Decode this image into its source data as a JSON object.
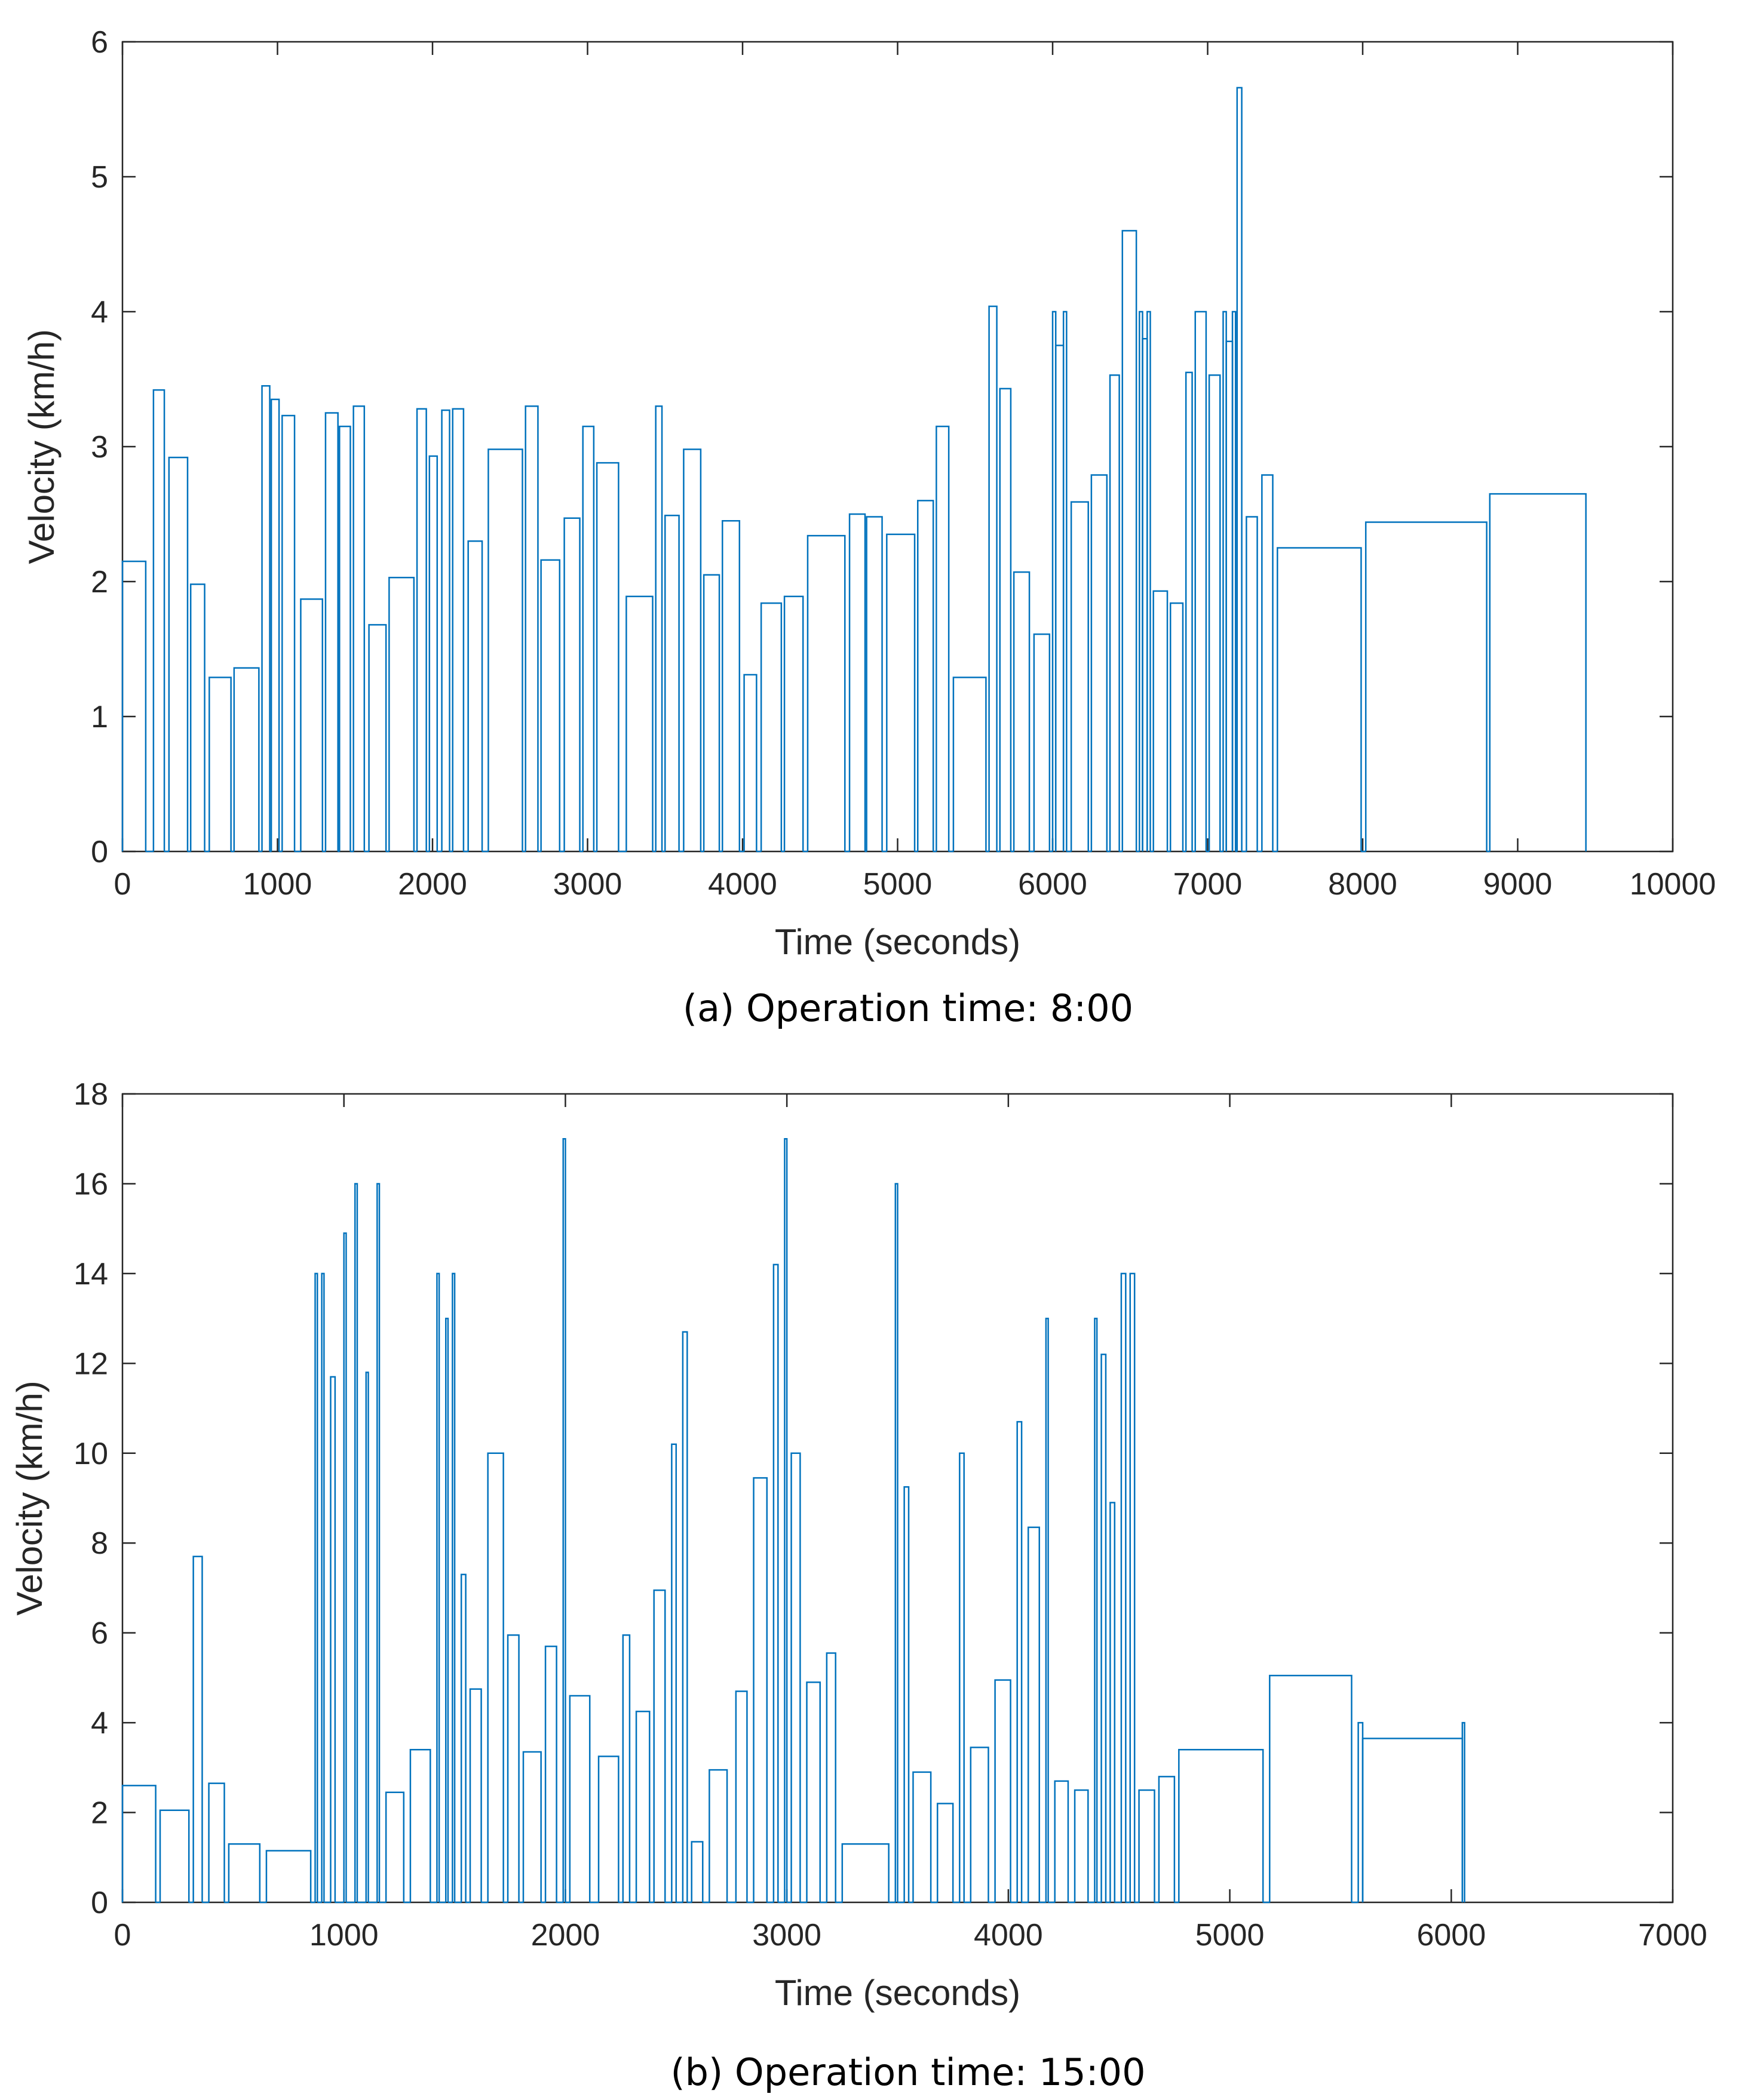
{
  "colors": {
    "series": "#0072BD",
    "axis": "#262626",
    "background": "#ffffff"
  },
  "chart_data": [
    {
      "type": "line",
      "title": "",
      "caption": "(a) Operation time: 8:00",
      "xlabel": "Time (seconds)",
      "ylabel": "Velocity (km/h)",
      "xlim": [
        0,
        10000
      ],
      "ylim": [
        0,
        6
      ],
      "xticks": [
        0,
        1000,
        2000,
        3000,
        4000,
        5000,
        6000,
        7000,
        8000,
        9000,
        10000
      ],
      "yticks": [
        0,
        1,
        2,
        3,
        4,
        5,
        6
      ],
      "grid": false,
      "segments": [
        [
          0,
          150,
          2.15
        ],
        [
          200,
          270,
          3.42
        ],
        [
          300,
          420,
          2.92
        ],
        [
          440,
          530,
          1.98
        ],
        [
          560,
          700,
          1.29
        ],
        [
          720,
          880,
          1.36
        ],
        [
          900,
          950,
          3.45
        ],
        [
          960,
          1010,
          3.35
        ],
        [
          1030,
          1110,
          3.23
        ],
        [
          1150,
          1290,
          1.87
        ],
        [
          1310,
          1390,
          3.25
        ],
        [
          1400,
          1470,
          3.15
        ],
        [
          1490,
          1560,
          3.3
        ],
        [
          1590,
          1700,
          1.68
        ],
        [
          1720,
          1880,
          2.03
        ],
        [
          1900,
          1960,
          3.28
        ],
        [
          1980,
          2030,
          2.93
        ],
        [
          2060,
          2110,
          3.27
        ],
        [
          2130,
          2200,
          3.28
        ],
        [
          2230,
          2320,
          2.3
        ],
        [
          2360,
          2580,
          2.98
        ],
        [
          2600,
          2680,
          3.3
        ],
        [
          2700,
          2820,
          2.16
        ],
        [
          2850,
          2950,
          2.47
        ],
        [
          2970,
          3040,
          3.15
        ],
        [
          3060,
          3200,
          2.88
        ],
        [
          3250,
          3420,
          1.89
        ],
        [
          3440,
          3480,
          3.3
        ],
        [
          3500,
          3590,
          2.49
        ],
        [
          3620,
          3730,
          2.98
        ],
        [
          3750,
          3850,
          2.05
        ],
        [
          3870,
          3980,
          2.45
        ],
        [
          4010,
          4090,
          1.31
        ],
        [
          4120,
          4250,
          1.84
        ],
        [
          4270,
          4390,
          1.89
        ],
        [
          4420,
          4660,
          2.34
        ],
        [
          4690,
          4790,
          2.5
        ],
        [
          4800,
          4900,
          2.48
        ],
        [
          4930,
          5110,
          2.35
        ],
        [
          5130,
          5230,
          2.6
        ],
        [
          5250,
          5330,
          3.15
        ],
        [
          5360,
          5570,
          1.29
        ],
        [
          5590,
          5640,
          4.04
        ],
        [
          5660,
          5730,
          3.43
        ],
        [
          5750,
          5850,
          2.07
        ],
        [
          5880,
          5980,
          1.61
        ],
        [
          6000,
          6020,
          4.0
        ],
        [
          6020,
          6070,
          3.75
        ],
        [
          6070,
          6090,
          4.0
        ],
        [
          6120,
          6230,
          2.59
        ],
        [
          6250,
          6350,
          2.79
        ],
        [
          6370,
          6430,
          3.53
        ],
        [
          6450,
          6540,
          4.6
        ],
        [
          6560,
          6580,
          4.0
        ],
        [
          6580,
          6610,
          3.8
        ],
        [
          6610,
          6630,
          4.0
        ],
        [
          6650,
          6740,
          1.93
        ],
        [
          6760,
          6840,
          1.84
        ],
        [
          6860,
          6900,
          3.55
        ],
        [
          6920,
          6990,
          4.0
        ],
        [
          7010,
          7080,
          3.53
        ],
        [
          7100,
          7120,
          4.0
        ],
        [
          7120,
          7160,
          3.78
        ],
        [
          7160,
          7180,
          4.0
        ],
        [
          7190,
          7220,
          5.66
        ],
        [
          7250,
          7320,
          2.48
        ],
        [
          7350,
          7420,
          2.79
        ],
        [
          7450,
          7990,
          2.25
        ],
        [
          8020,
          8800,
          2.44
        ],
        [
          8820,
          9440,
          2.65
        ]
      ]
    },
    {
      "type": "line",
      "title": "",
      "caption": "(b) Operation time: 15:00",
      "xlabel": "Time (seconds)",
      "ylabel": "Velocity (km/h)",
      "xlim": [
        0,
        7000
      ],
      "ylim": [
        0,
        18
      ],
      "xticks": [
        0,
        1000,
        2000,
        3000,
        4000,
        5000,
        6000,
        7000
      ],
      "yticks": [
        0,
        2,
        4,
        6,
        8,
        10,
        12,
        14,
        16,
        18
      ],
      "grid": false,
      "segments": [
        [
          0,
          150,
          2.6
        ],
        [
          170,
          300,
          2.05
        ],
        [
          320,
          360,
          7.7
        ],
        [
          390,
          460,
          2.65
        ],
        [
          480,
          620,
          1.3
        ],
        [
          650,
          850,
          1.15
        ],
        [
          870,
          880,
          14.0
        ],
        [
          900,
          910,
          14.0
        ],
        [
          940,
          960,
          11.7
        ],
        [
          1000,
          1010,
          14.9
        ],
        [
          1050,
          1060,
          16.0
        ],
        [
          1100,
          1110,
          11.8
        ],
        [
          1150,
          1160,
          16.0
        ],
        [
          1190,
          1270,
          2.45
        ],
        [
          1300,
          1390,
          3.4
        ],
        [
          1420,
          1430,
          14.0
        ],
        [
          1460,
          1470,
          13.0
        ],
        [
          1490,
          1500,
          14.0
        ],
        [
          1530,
          1550,
          7.3
        ],
        [
          1570,
          1620,
          4.75
        ],
        [
          1650,
          1720,
          10.0
        ],
        [
          1740,
          1790,
          5.95
        ],
        [
          1810,
          1890,
          3.35
        ],
        [
          1910,
          1960,
          5.7
        ],
        [
          1990,
          2000,
          17.0
        ],
        [
          2020,
          2110,
          4.6
        ],
        [
          2150,
          2240,
          3.25
        ],
        [
          2260,
          2290,
          5.95
        ],
        [
          2320,
          2380,
          4.25
        ],
        [
          2400,
          2450,
          6.95
        ],
        [
          2480,
          2500,
          10.2
        ],
        [
          2530,
          2550,
          12.7
        ],
        [
          2570,
          2620,
          1.35
        ],
        [
          2650,
          2730,
          2.95
        ],
        [
          2770,
          2820,
          4.7
        ],
        [
          2850,
          2910,
          9.45
        ],
        [
          2940,
          2960,
          14.2
        ],
        [
          2990,
          3000,
          17.0
        ],
        [
          3020,
          3060,
          10.0
        ],
        [
          3090,
          3150,
          4.9
        ],
        [
          3180,
          3220,
          5.55
        ],
        [
          3250,
          3460,
          1.3
        ],
        [
          3490,
          3500,
          16.0
        ],
        [
          3530,
          3550,
          9.25
        ],
        [
          3570,
          3650,
          2.9
        ],
        [
          3680,
          3750,
          2.2
        ],
        [
          3780,
          3800,
          10.0
        ],
        [
          3830,
          3910,
          3.45
        ],
        [
          3940,
          4010,
          4.95
        ],
        [
          4040,
          4060,
          10.7
        ],
        [
          4090,
          4140,
          8.35
        ],
        [
          4170,
          4180,
          13.0
        ],
        [
          4210,
          4270,
          2.7
        ],
        [
          4300,
          4360,
          2.5
        ],
        [
          4390,
          4400,
          13.0
        ],
        [
          4420,
          4440,
          12.2
        ],
        [
          4460,
          4480,
          8.9
        ],
        [
          4510,
          4530,
          14.0
        ],
        [
          4550,
          4570,
          14.0
        ],
        [
          4590,
          4660,
          2.5
        ],
        [
          4680,
          4750,
          2.8
        ],
        [
          4770,
          5150,
          3.4
        ],
        [
          5180,
          5550,
          5.05
        ],
        [
          5580,
          5600,
          4.0
        ],
        [
          5600,
          6050,
          3.65
        ],
        [
          6050,
          6060,
          4.0
        ]
      ]
    }
  ]
}
